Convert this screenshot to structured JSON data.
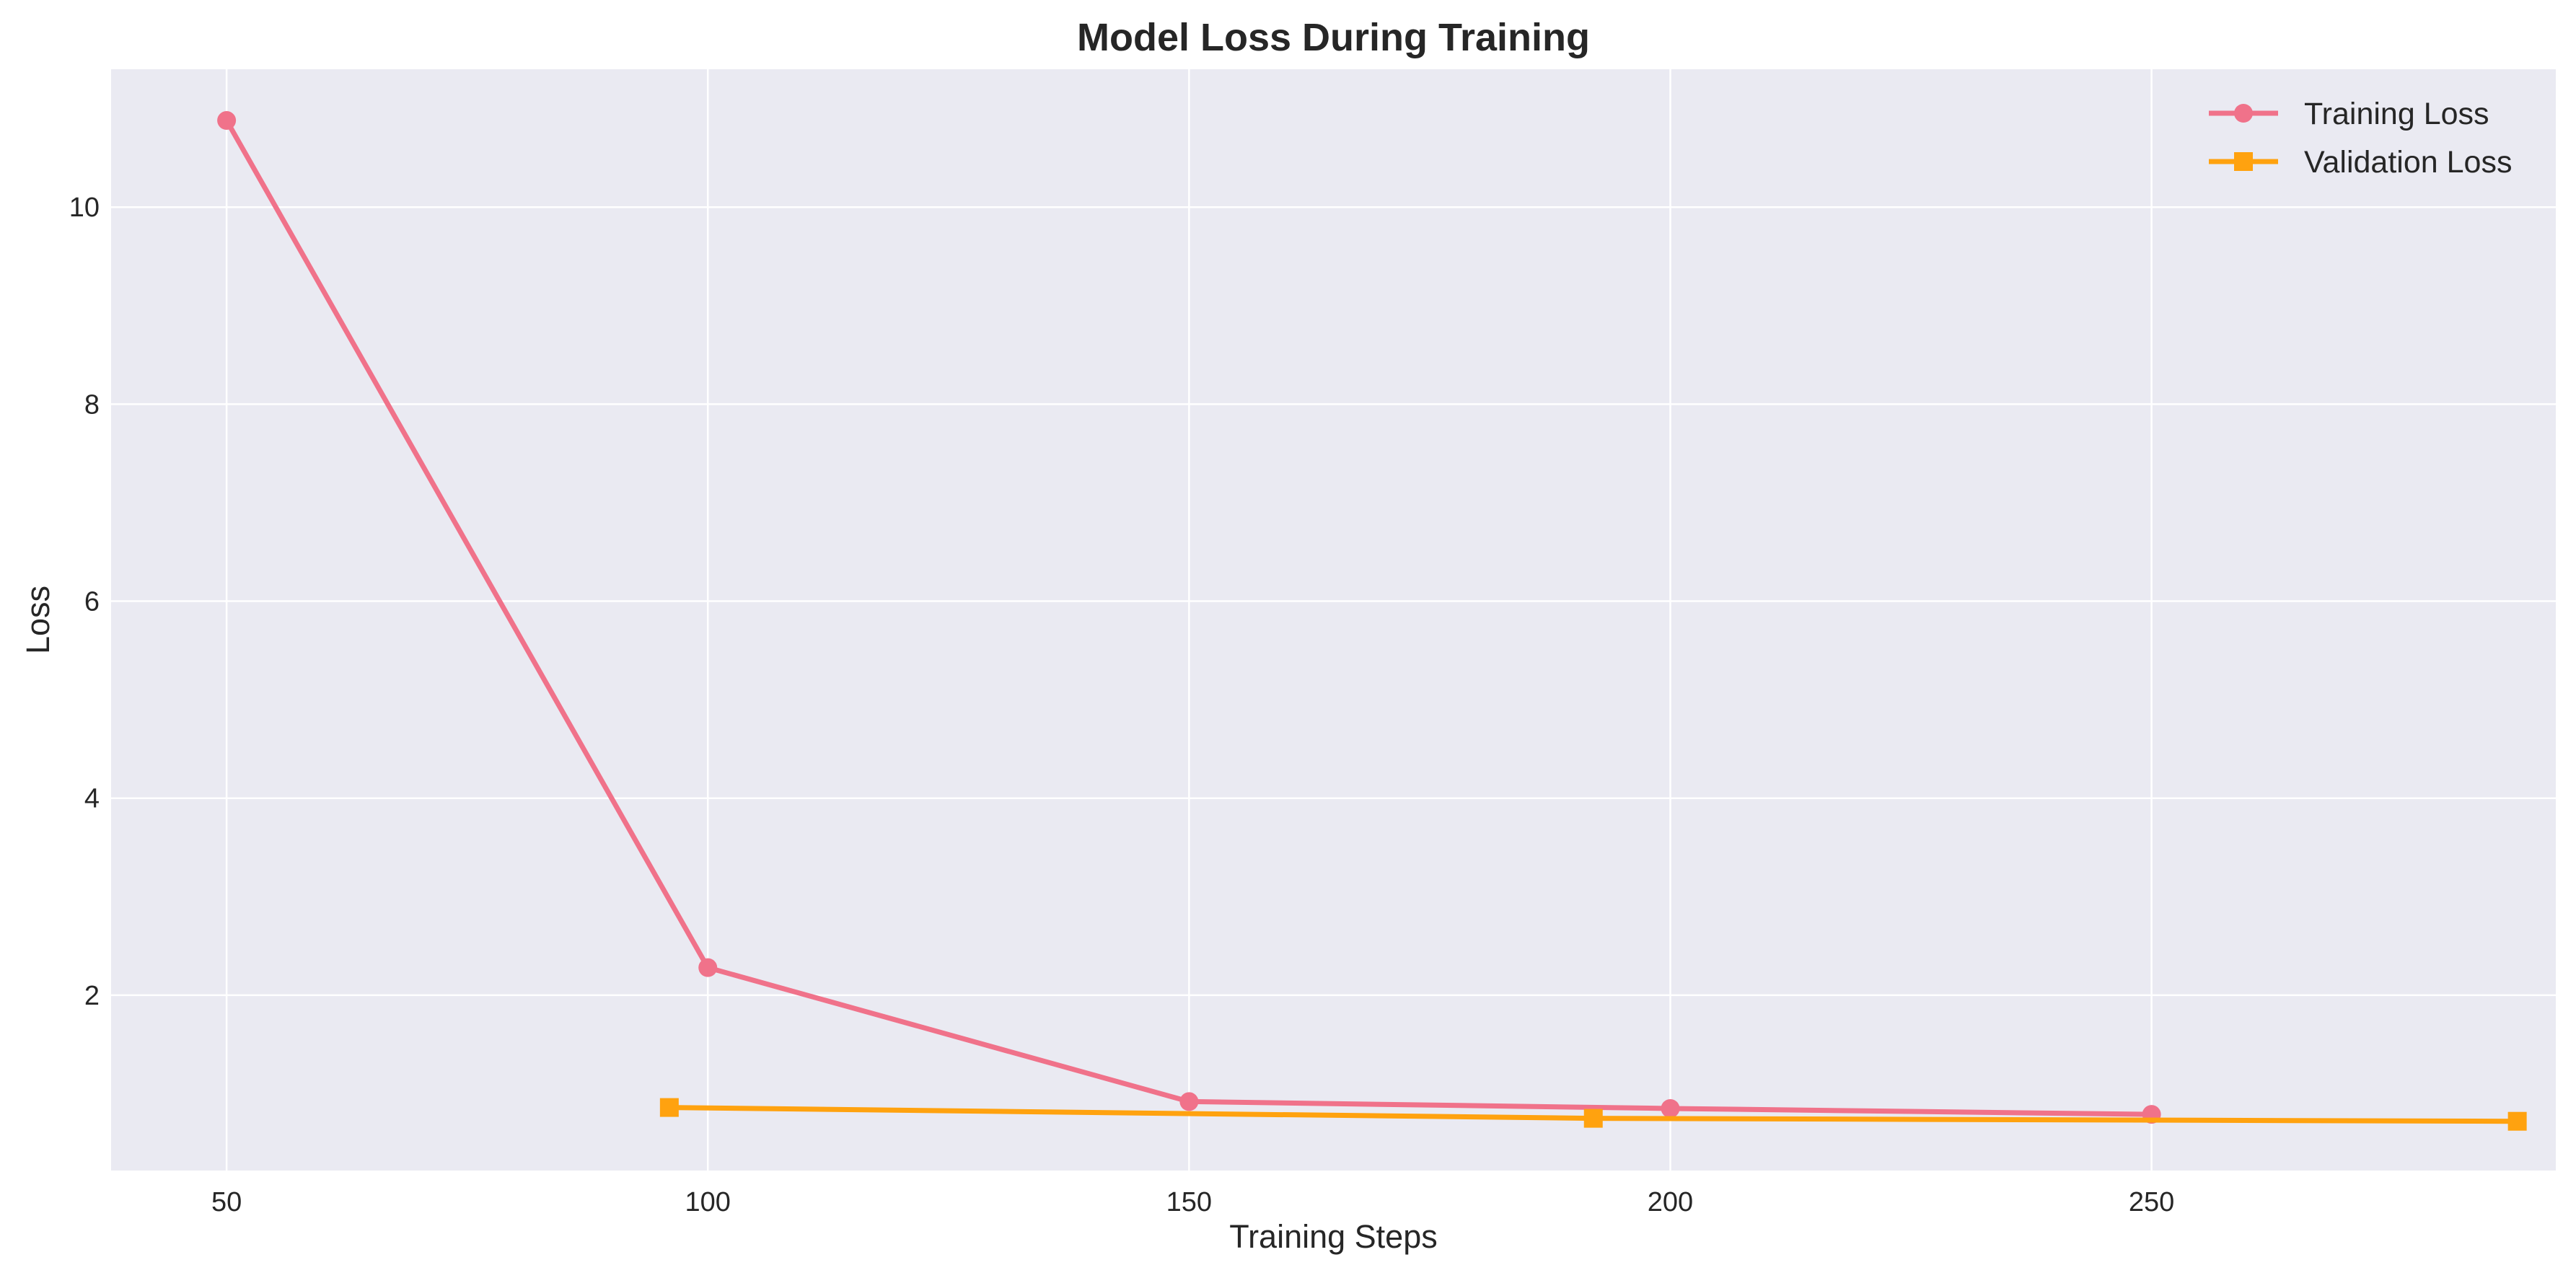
{
  "chart_data": {
    "type": "line",
    "title": "Model Loss During Training",
    "xlabel": "Training Steps",
    "ylabel": "Loss",
    "xlim": [
      38,
      292
    ],
    "ylim": [
      0.22,
      11.4
    ],
    "xticks": [
      50,
      100,
      150,
      200,
      250
    ],
    "yticks": [
      2,
      4,
      6,
      8,
      10
    ],
    "grid": true,
    "legend_position": "top-right",
    "series": [
      {
        "name": "Training Loss",
        "color": "#f0728a",
        "marker": "circle",
        "x": [
          50,
          100,
          150,
          200,
          250
        ],
        "y": [
          10.88,
          2.28,
          0.92,
          0.85,
          0.79
        ]
      },
      {
        "name": "Validation Loss",
        "color": "#ffa20f",
        "marker": "square",
        "x": [
          96,
          192,
          288
        ],
        "y": [
          0.86,
          0.75,
          0.72
        ]
      }
    ]
  }
}
